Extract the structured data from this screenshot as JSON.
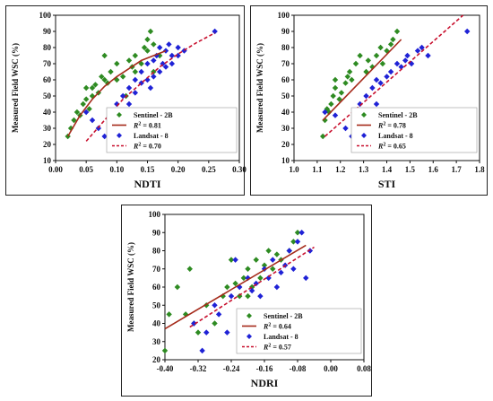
{
  "colors": {
    "sentinel": "#2e8b22",
    "landsat": "#1f22d6",
    "fit_sentinel": "#a52a1a",
    "fit_landsat": "#c8102e"
  },
  "chart_data": [
    {
      "id": "ndti",
      "type": "scatter",
      "xlabel": "NDTI",
      "ylabel": "Measured Field WSC (%)",
      "xlim": [
        0.0,
        0.3
      ],
      "ylim": [
        10,
        100
      ],
      "xticks": [
        "0.00",
        "0.05",
        "0.10",
        "0.15",
        "0.20",
        "0.25",
        "0.30"
      ],
      "yticks": [
        "10",
        "20",
        "30",
        "40",
        "50",
        "60",
        "70",
        "80",
        "90",
        "100"
      ],
      "legend_position": "lower-right",
      "legend": [
        "Sentinel - 2B",
        "R2 = 0.81",
        "Landsat - 8",
        "R2 = 0.70"
      ],
      "series": [
        {
          "name": "Sentinel - 2B",
          "marker": "diamond",
          "points": [
            [
              0.02,
              25
            ],
            [
              0.025,
              30
            ],
            [
              0.03,
              35
            ],
            [
              0.035,
              40
            ],
            [
              0.04,
              38
            ],
            [
              0.045,
              45
            ],
            [
              0.05,
              55
            ],
            [
              0.05,
              48
            ],
            [
              0.055,
              42
            ],
            [
              0.06,
              50
            ],
            [
              0.06,
              55
            ],
            [
              0.065,
              57
            ],
            [
              0.07,
              52
            ],
            [
              0.075,
              62
            ],
            [
              0.08,
              60
            ],
            [
              0.08,
              75
            ],
            [
              0.085,
              58
            ],
            [
              0.09,
              65
            ],
            [
              0.1,
              70
            ],
            [
              0.1,
              60
            ],
            [
              0.11,
              62
            ],
            [
              0.115,
              50
            ],
            [
              0.12,
              72
            ],
            [
              0.125,
              68
            ],
            [
              0.13,
              75
            ],
            [
              0.13,
              65
            ],
            [
              0.14,
              70
            ],
            [
              0.145,
              80
            ],
            [
              0.15,
              78
            ],
            [
              0.15,
              85
            ],
            [
              0.155,
              90
            ],
            [
              0.16,
              65
            ],
            [
              0.16,
              82
            ],
            [
              0.17,
              75
            ]
          ]
        },
        {
          "name": "Landsat - 8",
          "marker": "diamond",
          "points": [
            [
              0.05,
              40
            ],
            [
              0.06,
              35
            ],
            [
              0.07,
              30
            ],
            [
              0.08,
              25
            ],
            [
              0.09,
              40
            ],
            [
              0.1,
              45
            ],
            [
              0.1,
              38
            ],
            [
              0.11,
              35
            ],
            [
              0.11,
              50
            ],
            [
              0.12,
              55
            ],
            [
              0.12,
              45
            ],
            [
              0.13,
              60
            ],
            [
              0.13,
              52
            ],
            [
              0.14,
              58
            ],
            [
              0.14,
              65
            ],
            [
              0.15,
              60
            ],
            [
              0.15,
              70
            ],
            [
              0.155,
              55
            ],
            [
              0.16,
              62
            ],
            [
              0.16,
              72
            ],
            [
              0.165,
              75
            ],
            [
              0.17,
              65
            ],
            [
              0.17,
              80
            ],
            [
              0.175,
              70
            ],
            [
              0.18,
              78
            ],
            [
              0.18,
              68
            ],
            [
              0.185,
              82
            ],
            [
              0.19,
              75
            ],
            [
              0.19,
              70
            ],
            [
              0.2,
              80
            ],
            [
              0.2,
              75
            ],
            [
              0.21,
              78
            ],
            [
              0.26,
              90
            ]
          ]
        }
      ],
      "fits": [
        {
          "name": "Sentinel - 2B",
          "style": "solid",
          "points": [
            [
              0.02,
              25
            ],
            [
              0.04,
              38
            ],
            [
              0.06,
              48
            ],
            [
              0.08,
              56
            ],
            [
              0.1,
              62
            ],
            [
              0.12,
              67
            ],
            [
              0.14,
              72
            ],
            [
              0.16,
              75
            ],
            [
              0.18,
              78
            ]
          ]
        },
        {
          "name": "Landsat - 8",
          "style": "dashed",
          "points": [
            [
              0.05,
              22
            ],
            [
              0.08,
              35
            ],
            [
              0.11,
              48
            ],
            [
              0.14,
              58
            ],
            [
              0.17,
              68
            ],
            [
              0.2,
              76
            ],
            [
              0.23,
              83
            ],
            [
              0.26,
              89
            ]
          ]
        }
      ]
    },
    {
      "id": "sti",
      "type": "scatter",
      "xlabel": "STI",
      "ylabel": "Measured Field WSC (%)",
      "xlim": [
        0.9,
        1.8
      ],
      "ylim": [
        10,
        100
      ],
      "xticks": [
        "1.0",
        "1.1",
        "1.2",
        "1.3",
        "1.4",
        "1.5",
        "1.6",
        "1.7",
        "1.8"
      ],
      "yticks": [
        "10",
        "20",
        "30",
        "40",
        "50",
        "60",
        "70",
        "80",
        "90",
        "100"
      ],
      "legend_position": "lower-right",
      "legend": [
        "Sentinel - 2B",
        "R2 = 0.78",
        "Landsat - 8",
        "R2 = 0.65"
      ],
      "series": [
        {
          "name": "Sentinel - 2B",
          "marker": "diamond",
          "points": [
            [
              1.04,
              25
            ],
            [
              1.05,
              35
            ],
            [
              1.07,
              40
            ],
            [
              1.08,
              45
            ],
            [
              1.09,
              50
            ],
            [
              1.1,
              55
            ],
            [
              1.12,
              48
            ],
            [
              1.13,
              52
            ],
            [
              1.15,
              58
            ],
            [
              1.16,
              62
            ],
            [
              1.17,
              65
            ],
            [
              1.18,
              60
            ],
            [
              1.2,
              70
            ],
            [
              1.22,
              75
            ],
            [
              1.25,
              65
            ],
            [
              1.26,
              72
            ],
            [
              1.28,
              68
            ],
            [
              1.3,
              75
            ],
            [
              1.32,
              80
            ],
            [
              1.33,
              70
            ],
            [
              1.35,
              78
            ],
            [
              1.37,
              82
            ],
            [
              1.38,
              85
            ],
            [
              1.4,
              90
            ],
            [
              1.1,
              60
            ],
            [
              1.06,
              42
            ]
          ]
        },
        {
          "name": "Landsat - 8",
          "marker": "diamond",
          "points": [
            [
              1.05,
              40
            ],
            [
              1.1,
              38
            ],
            [
              1.15,
              30
            ],
            [
              1.18,
              25
            ],
            [
              1.2,
              40
            ],
            [
              1.22,
              45
            ],
            [
              1.25,
              50
            ],
            [
              1.27,
              35
            ],
            [
              1.28,
              55
            ],
            [
              1.3,
              60
            ],
            [
              1.32,
              58
            ],
            [
              1.35,
              62
            ],
            [
              1.37,
              65
            ],
            [
              1.4,
              70
            ],
            [
              1.42,
              68
            ],
            [
              1.44,
              72
            ],
            [
              1.45,
              75
            ],
            [
              1.47,
              70
            ],
            [
              1.5,
              78
            ],
            [
              1.52,
              80
            ],
            [
              1.55,
              75
            ],
            [
              1.74,
              90
            ],
            [
              1.3,
              45
            ]
          ]
        }
      ],
      "fits": [
        {
          "name": "Sentinel - 2B",
          "style": "solid",
          "points": [
            [
              1.04,
              35
            ],
            [
              1.42,
              85
            ]
          ]
        },
        {
          "name": "Landsat - 8",
          "style": "dashed",
          "points": [
            [
              1.05,
              25
            ],
            [
              1.72,
              100
            ]
          ]
        }
      ]
    },
    {
      "id": "ndri",
      "type": "scatter",
      "xlabel": "NDRI",
      "ylabel": "Measured Field WSC (%)",
      "xlim": [
        -0.4,
        0.08
      ],
      "ylim": [
        20,
        100
      ],
      "xticks": [
        "-0.40",
        "-0.32",
        "-0.24",
        "-0.16",
        "-0.08",
        "0.00",
        "0.08"
      ],
      "yticks": [
        "20",
        "30",
        "40",
        "50",
        "60",
        "70",
        "80",
        "90",
        "100"
      ],
      "legend_position": "lower-right",
      "legend": [
        "Sentinel - 2B",
        "R2 = 0.64",
        "Landsat - 8",
        "R2 = 0.57"
      ],
      "series": [
        {
          "name": "Sentinel - 2B",
          "marker": "diamond",
          "points": [
            [
              -0.4,
              25
            ],
            [
              -0.39,
              45
            ],
            [
              -0.37,
              60
            ],
            [
              -0.35,
              45
            ],
            [
              -0.34,
              70
            ],
            [
              -0.33,
              40
            ],
            [
              -0.32,
              35
            ],
            [
              -0.3,
              50
            ],
            [
              -0.28,
              40
            ],
            [
              -0.26,
              55
            ],
            [
              -0.25,
              60
            ],
            [
              -0.24,
              75
            ],
            [
              -0.23,
              62
            ],
            [
              -0.22,
              55
            ],
            [
              -0.21,
              65
            ],
            [
              -0.2,
              70
            ],
            [
              -0.19,
              60
            ],
            [
              -0.18,
              75
            ],
            [
              -0.17,
              65
            ],
            [
              -0.16,
              72
            ],
            [
              -0.15,
              80
            ],
            [
              -0.14,
              70
            ],
            [
              -0.13,
              78
            ],
            [
              -0.12,
              75
            ],
            [
              -0.1,
              80
            ],
            [
              -0.09,
              85
            ],
            [
              -0.08,
              90
            ],
            [
              -0.2,
              55
            ]
          ]
        },
        {
          "name": "Landsat - 8",
          "marker": "diamond",
          "points": [
            [
              -0.33,
              40
            ],
            [
              -0.31,
              25
            ],
            [
              -0.3,
              35
            ],
            [
              -0.28,
              50
            ],
            [
              -0.27,
              45
            ],
            [
              -0.25,
              35
            ],
            [
              -0.24,
              55
            ],
            [
              -0.23,
              75
            ],
            [
              -0.22,
              60
            ],
            [
              -0.21,
              45
            ],
            [
              -0.2,
              65
            ],
            [
              -0.19,
              58
            ],
            [
              -0.18,
              62
            ],
            [
              -0.17,
              55
            ],
            [
              -0.16,
              70
            ],
            [
              -0.15,
              65
            ],
            [
              -0.14,
              75
            ],
            [
              -0.13,
              60
            ],
            [
              -0.12,
              68
            ],
            [
              -0.11,
              72
            ],
            [
              -0.1,
              80
            ],
            [
              -0.09,
              70
            ],
            [
              -0.08,
              85
            ],
            [
              -0.07,
              90
            ],
            [
              -0.06,
              65
            ],
            [
              -0.05,
              80
            ]
          ]
        }
      ],
      "fits": [
        {
          "name": "Sentinel - 2B",
          "style": "solid",
          "points": [
            [
              -0.4,
              37
            ],
            [
              -0.06,
              83
            ]
          ]
        },
        {
          "name": "Landsat - 8",
          "style": "dashed",
          "points": [
            [
              -0.34,
              38
            ],
            [
              -0.04,
              82
            ]
          ]
        }
      ]
    }
  ]
}
